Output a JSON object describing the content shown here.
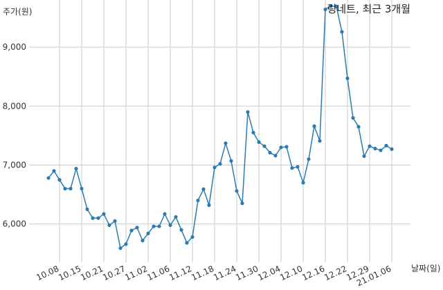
{
  "chart_data": {
    "type": "line",
    "title": "링네트, 최근 3개월",
    "ylabel": "주가(원)",
    "xlabel": "날짜(일)",
    "ylim": [
      5350,
      9800
    ],
    "grid": true,
    "y_ticks": [
      6000,
      7000,
      8000,
      9000
    ],
    "y_tick_labels": [
      "6,000",
      "7,000",
      "8,000",
      "9,000"
    ],
    "x_tick_labels": [
      "10.08",
      "10.15",
      "10.21",
      "10.27",
      "11.02",
      "11.06",
      "11.12",
      "11.18",
      "11.24",
      "11.30",
      "12.04",
      "12.10",
      "12.16",
      "12.22",
      "12.29",
      "21.01.06"
    ],
    "x_tick_indices": [
      2,
      6,
      10,
      14,
      18,
      22,
      26,
      30,
      34,
      38,
      42,
      46,
      50,
      54,
      58,
      62
    ],
    "series": [
      {
        "color": "#2b7bb0",
        "values": [
          6780,
          6900,
          6750,
          6600,
          6600,
          6940,
          6600,
          6250,
          6100,
          6100,
          6170,
          5980,
          6050,
          5590,
          5660,
          5890,
          5940,
          5720,
          5840,
          5960,
          5960,
          6170,
          5980,
          6120,
          5900,
          5680,
          5780,
          6400,
          6590,
          6320,
          6960,
          7020,
          7370,
          7070,
          6560,
          6350,
          7900,
          7550,
          7390,
          7320,
          7210,
          7160,
          7300,
          7310,
          6950,
          6970,
          6700,
          7100,
          7660,
          7410,
          9640,
          9700,
          9690,
          9260,
          8470,
          7800,
          7650,
          7150,
          7320,
          7280,
          7250,
          7330,
          7270
        ]
      }
    ]
  }
}
